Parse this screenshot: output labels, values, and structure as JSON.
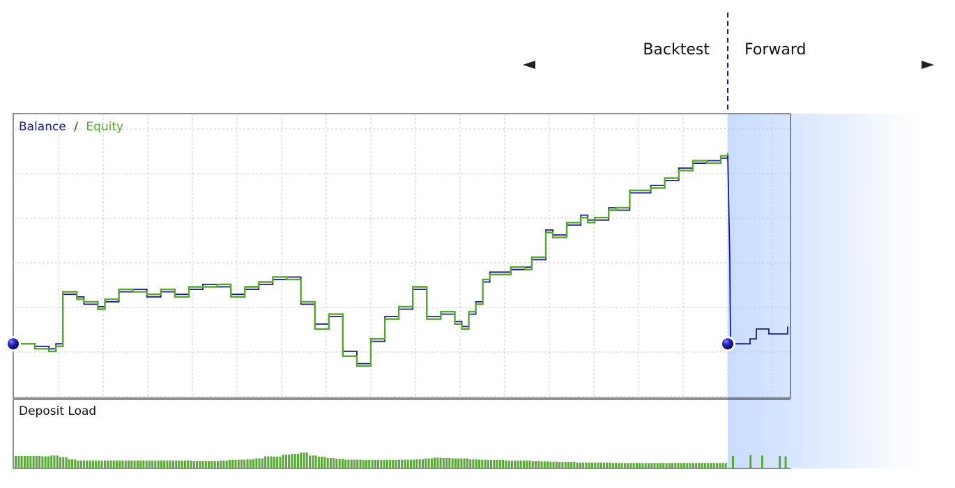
{
  "header": {
    "backtest_label": "Backtest",
    "forward_label": "Forward"
  },
  "legend": {
    "balance_label": "Balance",
    "separator": "/",
    "equity_label": "Equity"
  },
  "deposit_panel": {
    "title": "Deposit Load"
  },
  "colors": {
    "balance": "#1a1a8c",
    "equity": "#58a62f",
    "deposit_bars": "#5ba83a",
    "forward_shade": "#cfe0ff",
    "grid": "#c8c8c8",
    "divider": "#1a1a8c"
  },
  "chart_data": [
    {
      "type": "line",
      "title": "",
      "xlabel": "",
      "ylabel": "",
      "x_unit": "trade index",
      "ylim": [
        0,
        100
      ],
      "grid": true,
      "legend": "top-left",
      "series": [
        {
          "name": "Balance",
          "x": [
            0,
            2,
            4,
            5,
            6,
            8,
            9,
            11,
            12,
            14,
            16,
            18,
            20,
            22,
            24,
            26,
            28,
            30,
            32,
            34,
            36,
            38,
            40,
            42,
            44,
            46,
            48,
            50,
            52,
            54,
            56,
            58,
            60,
            62,
            63,
            64,
            65,
            66,
            67,
            70,
            72,
            73,
            75,
            76,
            78,
            80,
            81,
            82,
            84,
            85,
            87,
            90,
            92,
            94,
            96,
            98,
            100,
            101
          ],
          "y": [
            16,
            15,
            14,
            16,
            36,
            35,
            32,
            31,
            33,
            37,
            38,
            35,
            37,
            36,
            38,
            40,
            39,
            36,
            38,
            40,
            42,
            43,
            32,
            24,
            27,
            13,
            8,
            17,
            27,
            30,
            38,
            27,
            28,
            25,
            23,
            28,
            33,
            41,
            45,
            46,
            47,
            50,
            62,
            60,
            64,
            68,
            66,
            66,
            71,
            70,
            77,
            80,
            82,
            87,
            89,
            90,
            91,
            92
          ],
          "segment": "backtest"
        },
        {
          "name": "Equity",
          "x": [
            0,
            2,
            4,
            5,
            6,
            8,
            9,
            11,
            12,
            14,
            16,
            18,
            20,
            22,
            24,
            26,
            28,
            30,
            32,
            34,
            36,
            38,
            40,
            42,
            44,
            46,
            48,
            50,
            52,
            54,
            56,
            58,
            60,
            62,
            63,
            64,
            65,
            66,
            67,
            70,
            72,
            73,
            75,
            76,
            78,
            80,
            81,
            82,
            84,
            85,
            87,
            90,
            92,
            94,
            96,
            98,
            100,
            101
          ],
          "y": [
            16,
            14,
            13,
            15,
            37,
            34,
            33,
            30,
            34,
            38,
            37,
            36,
            38,
            35,
            39,
            39,
            40,
            35,
            39,
            41,
            43,
            42,
            33,
            22,
            28,
            11,
            7,
            18,
            26,
            31,
            39,
            26,
            29,
            24,
            22,
            29,
            32,
            42,
            44,
            47,
            46,
            51,
            61,
            59,
            65,
            67,
            65,
            67,
            70,
            71,
            78,
            79,
            83,
            86,
            90,
            89,
            92,
            93
          ],
          "segment": "backtest"
        },
        {
          "name": "Balance",
          "x": [
            0,
            1,
            2,
            3,
            4,
            5,
            6,
            7,
            8
          ],
          "y": [
            16,
            16,
            18,
            22,
            22,
            20,
            20,
            20,
            23
          ],
          "segment": "forward"
        }
      ]
    },
    {
      "type": "bar",
      "title": "Deposit Load",
      "ylim": [
        0,
        100
      ],
      "backtest_values": [
        30,
        30,
        30,
        29,
        31,
        27,
        22,
        19,
        19,
        19,
        19,
        19,
        19,
        19,
        19,
        19,
        19,
        19,
        19,
        19,
        18,
        18,
        18,
        19,
        20,
        21,
        22,
        24,
        29,
        28,
        33,
        35,
        38,
        31,
        28,
        25,
        23,
        21,
        21,
        20,
        20,
        20,
        20,
        21,
        21,
        22,
        24,
        26,
        25,
        24,
        24,
        22,
        21,
        20,
        20,
        19,
        19,
        19,
        18,
        17,
        16,
        15,
        15,
        14,
        14,
        14,
        14,
        13,
        13,
        13,
        13,
        13,
        13,
        13,
        13,
        13,
        13,
        13,
        13,
        13
      ],
      "forward_values": [
        30,
        0,
        0,
        32,
        0,
        31,
        0,
        0,
        30,
        29
      ]
    }
  ]
}
